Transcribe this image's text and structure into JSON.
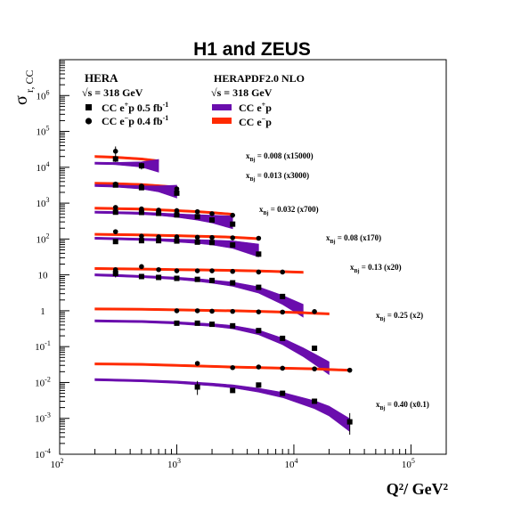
{
  "chart_data": {
    "type": "line",
    "title": "H1 and ZEUS",
    "ylabel_main": "σ",
    "ylabel_sub": "r, CC",
    "xlabel": "Q²/ GeV²",
    "xscale": "log",
    "yscale": "log",
    "xlim": [
      100,
      200000
    ],
    "ylim": [
      0.0001,
      10000000
    ],
    "x_ticks": [
      {
        "value": 100,
        "label": "10",
        "exp": "2"
      },
      {
        "value": 1000,
        "label": "10",
        "exp": "3"
      },
      {
        "value": 10000,
        "label": "10",
        "exp": "4"
      },
      {
        "value": 100000,
        "label": "10",
        "exp": "5"
      }
    ],
    "y_ticks": [
      {
        "value": 0.0001,
        "label": "10",
        "exp": "-4"
      },
      {
        "value": 0.001,
        "label": "10",
        "exp": "-3"
      },
      {
        "value": 0.01,
        "label": "10",
        "exp": "-2"
      },
      {
        "value": 0.1,
        "label": "10",
        "exp": "-1"
      },
      {
        "value": 1,
        "label": "1",
        "exp": ""
      },
      {
        "value": 10,
        "label": "10",
        "exp": ""
      },
      {
        "value": 100,
        "label": "10",
        "exp": "2"
      },
      {
        "value": 1000,
        "label": "10",
        "exp": "3"
      },
      {
        "value": 10000,
        "label": "10",
        "exp": "4"
      },
      {
        "value": 100000,
        "label": "10",
        "exp": "5"
      },
      {
        "value": 1000000,
        "label": "10",
        "exp": "6"
      }
    ],
    "legend": {
      "placement": "top-left",
      "data_title": "HERA",
      "data_energy": "√s = 318 GeV",
      "data_entries": [
        {
          "marker": "square",
          "label_pre": "CC e",
          "label_sup": "+",
          "label_post": "p 0.5 fb",
          "label_sup2": "-1"
        },
        {
          "marker": "circle",
          "label_pre": "CC e",
          "label_sup": "−",
          "label_post": "p 0.4 fb",
          "label_sup2": "-1"
        }
      ],
      "pdf_title": "HERAPDF2.0 NLO",
      "pdf_energy": "√s = 318 GeV",
      "pdf_entries": [
        {
          "color": "#6a0dad",
          "label_pre": "CC e",
          "label_sup": "+",
          "label_post": "p"
        },
        {
          "color": "#ff2a00",
          "label_pre": "CC e",
          "label_sup": "−",
          "label_post": "p"
        }
      ]
    },
    "colors": {
      "ep_band": "#6a0dad",
      "em_band": "#ff2a00",
      "points": "#000000"
    },
    "bins": [
      {
        "xbj_label": "x",
        "xbj_sub": "Bj",
        "xbj_value": "= 0.008",
        "scale": "(x15000)",
        "label_anchor_q2": 9500,
        "ep_curve": [
          [
            200,
            13000
          ],
          [
            300,
            12700
          ],
          [
            500,
            12000
          ],
          [
            700,
            11000
          ]
        ],
        "em_curve": [
          [
            200,
            20000
          ],
          [
            300,
            19000
          ],
          [
            500,
            17000
          ],
          [
            700,
            15000
          ]
        ],
        "ep_points": [
          [
            300,
            17000
          ],
          [
            500,
            11000
          ]
        ],
        "em_points": [
          [
            300,
            28000
          ]
        ],
        "ep_err": [
          [
            300,
            14000,
            21000
          ],
          [
            500,
            8700,
            13500
          ]
        ],
        "em_err": [
          [
            300,
            20000,
            38000
          ]
        ]
      },
      {
        "xbj_label": "x",
        "xbj_sub": "Bj",
        "xbj_value": "= 0.013",
        "scale": "(x3000)",
        "label_anchor_q2": 9500,
        "ep_curve": [
          [
            200,
            3100
          ],
          [
            300,
            3000
          ],
          [
            500,
            2750
          ],
          [
            700,
            2500
          ],
          [
            1000,
            2100
          ]
        ],
        "em_curve": [
          [
            200,
            3600
          ],
          [
            300,
            3500
          ],
          [
            500,
            3300
          ],
          [
            700,
            3050
          ],
          [
            1000,
            2800
          ]
        ],
        "ep_points": [
          [
            300,
            3200
          ],
          [
            500,
            2700
          ],
          [
            1000,
            1900
          ]
        ],
        "em_points": [
          [
            300,
            3400
          ],
          [
            500,
            3000
          ],
          [
            1000,
            2500
          ]
        ],
        "ep_err": [],
        "em_err": []
      },
      {
        "xbj_label": "x",
        "xbj_sub": "Bj",
        "xbj_value": "= 0.032",
        "scale": "(x700)",
        "label_anchor_q2": 2100,
        "ep_curve": [
          [
            200,
            560
          ],
          [
            300,
            545
          ],
          [
            500,
            520
          ],
          [
            700,
            490
          ],
          [
            1000,
            450
          ],
          [
            1500,
            400
          ],
          [
            2000,
            360
          ],
          [
            3000,
            290
          ]
        ],
        "em_curve": [
          [
            200,
            720
          ],
          [
            300,
            705
          ],
          [
            500,
            680
          ],
          [
            700,
            650
          ],
          [
            1000,
            620
          ],
          [
            1500,
            580
          ],
          [
            2000,
            545
          ],
          [
            3000,
            490
          ]
        ],
        "ep_points": [
          [
            300,
            560
          ],
          [
            500,
            550
          ],
          [
            700,
            520
          ],
          [
            1000,
            470
          ],
          [
            1500,
            420
          ],
          [
            2000,
            340
          ],
          [
            3000,
            260
          ]
        ],
        "em_points": [
          [
            300,
            760
          ],
          [
            500,
            690
          ],
          [
            700,
            640
          ],
          [
            1000,
            620
          ],
          [
            1500,
            580
          ],
          [
            2000,
            510
          ],
          [
            3000,
            460
          ]
        ],
        "ep_err": [],
        "em_err": []
      },
      {
        "xbj_label": "x",
        "xbj_sub": "Bj",
        "xbj_value": "= 0.08",
        "scale": "(x170)",
        "label_anchor_q2": 13000,
        "ep_curve": [
          [
            200,
            105
          ],
          [
            300,
            102
          ],
          [
            500,
            98
          ],
          [
            700,
            95
          ],
          [
            1000,
            90
          ],
          [
            1500,
            85
          ],
          [
            2000,
            80
          ],
          [
            3000,
            70
          ],
          [
            5000,
            48
          ]
        ],
        "em_curve": [
          [
            200,
            135
          ],
          [
            300,
            133
          ],
          [
            500,
            130
          ],
          [
            700,
            127
          ],
          [
            1000,
            124
          ],
          [
            1500,
            120
          ],
          [
            2000,
            117
          ],
          [
            3000,
            112
          ],
          [
            5000,
            102
          ]
        ],
        "ep_points": [
          [
            300,
            85
          ],
          [
            500,
            90
          ],
          [
            700,
            90
          ],
          [
            1000,
            88
          ],
          [
            1500,
            82
          ],
          [
            2000,
            80
          ],
          [
            3000,
            68
          ],
          [
            5000,
            38
          ]
        ],
        "em_points": [
          [
            300,
            160
          ],
          [
            500,
            120
          ],
          [
            700,
            115
          ],
          [
            1000,
            115
          ],
          [
            1500,
            112
          ],
          [
            2000,
            110
          ],
          [
            3000,
            108
          ],
          [
            5000,
            105
          ]
        ],
        "ep_err": [],
        "em_err": []
      },
      {
        "xbj_label": "x",
        "xbj_sub": "Bj",
        "xbj_value": "= 0.13",
        "scale": "(x20)",
        "label_anchor_q2": 20500,
        "ep_curve": [
          [
            200,
            10
          ],
          [
            300,
            9.6
          ],
          [
            500,
            9.0
          ],
          [
            700,
            8.5
          ],
          [
            1000,
            8.0
          ],
          [
            1500,
            7.2
          ],
          [
            2000,
            6.5
          ],
          [
            3000,
            5.5
          ],
          [
            5000,
            3.8
          ],
          [
            8000,
            2.0
          ],
          [
            12000,
            1.0
          ]
        ],
        "em_curve": [
          [
            200,
            15
          ],
          [
            300,
            14.8
          ],
          [
            500,
            14.5
          ],
          [
            700,
            14.3
          ],
          [
            1000,
            14.0
          ],
          [
            1500,
            13.8
          ],
          [
            2000,
            13.6
          ],
          [
            3000,
            13.3
          ],
          [
            5000,
            12.8
          ],
          [
            8000,
            12.3
          ],
          [
            12000,
            11.8
          ]
        ],
        "ep_points": [
          [
            300,
            11
          ],
          [
            500,
            9
          ],
          [
            700,
            8.5
          ],
          [
            1000,
            8
          ],
          [
            1500,
            7.5
          ],
          [
            2000,
            7
          ],
          [
            3000,
            6
          ],
          [
            5000,
            4.5
          ],
          [
            8000,
            2.5
          ]
        ],
        "em_points": [
          [
            300,
            14
          ],
          [
            500,
            17
          ],
          [
            700,
            14
          ],
          [
            1000,
            13
          ],
          [
            1500,
            13
          ],
          [
            2000,
            13
          ],
          [
            3000,
            12.5
          ],
          [
            5000,
            12
          ],
          [
            8000,
            12
          ]
        ],
        "ep_err": [
          [
            300,
            8.5,
            14
          ]
        ],
        "em_err": []
      },
      {
        "xbj_label": "x",
        "xbj_sub": "Bj",
        "xbj_value": "= 0.25",
        "scale": "(x2)",
        "label_anchor_q2": 40000,
        "ep_curve": [
          [
            200,
            0.52
          ],
          [
            500,
            0.5
          ],
          [
            1000,
            0.46
          ],
          [
            2000,
            0.4
          ],
          [
            3000,
            0.35
          ],
          [
            5000,
            0.25
          ],
          [
            8000,
            0.14
          ],
          [
            12000,
            0.07
          ],
          [
            15000,
            0.045
          ],
          [
            20000,
            0.025
          ]
        ],
        "em_curve": [
          [
            200,
            1.12
          ],
          [
            500,
            1.1
          ],
          [
            1000,
            1.06
          ],
          [
            2000,
            1.02
          ],
          [
            3000,
            1.0
          ],
          [
            5000,
            0.96
          ],
          [
            8000,
            0.92
          ],
          [
            12000,
            0.88
          ],
          [
            15000,
            0.85
          ],
          [
            20000,
            0.82
          ]
        ],
        "ep_points": [
          [
            1000,
            0.45
          ],
          [
            1500,
            0.45
          ],
          [
            2000,
            0.42
          ],
          [
            3000,
            0.38
          ],
          [
            5000,
            0.28
          ],
          [
            8000,
            0.17
          ],
          [
            15000,
            0.09
          ]
        ],
        "em_points": [
          [
            1000,
            1.0
          ],
          [
            1500,
            1.0
          ],
          [
            2000,
            0.97
          ],
          [
            3000,
            0.96
          ],
          [
            5000,
            0.93
          ],
          [
            8000,
            0.92
          ],
          [
            15000,
            0.95
          ]
        ],
        "ep_err": [],
        "em_err": []
      },
      {
        "xbj_label": "x",
        "xbj_sub": "Bj",
        "xbj_value": "= 0.40",
        "scale": "(x0.1)",
        "label_anchor_q2": 40000,
        "ep_curve": [
          [
            200,
            0.012
          ],
          [
            500,
            0.0112
          ],
          [
            1000,
            0.0102
          ],
          [
            2000,
            0.0088
          ],
          [
            3000,
            0.0078
          ],
          [
            5000,
            0.0061
          ],
          [
            8000,
            0.0045
          ],
          [
            15000,
            0.0024
          ],
          [
            20000,
            0.0016
          ],
          [
            30000,
            0.00065
          ]
        ],
        "em_curve": [
          [
            200,
            0.033
          ],
          [
            500,
            0.032
          ],
          [
            1000,
            0.03
          ],
          [
            2000,
            0.028
          ],
          [
            3000,
            0.027
          ],
          [
            5000,
            0.026
          ],
          [
            8000,
            0.025
          ],
          [
            15000,
            0.024
          ],
          [
            20000,
            0.023
          ],
          [
            30000,
            0.022
          ]
        ],
        "ep_points": [
          [
            1500,
            0.0075
          ],
          [
            3000,
            0.006
          ],
          [
            5000,
            0.0085
          ],
          [
            8000,
            0.005
          ],
          [
            15000,
            0.003
          ],
          [
            30000,
            0.0008
          ]
        ],
        "em_points": [
          [
            1500,
            0.034
          ],
          [
            3000,
            0.026
          ],
          [
            5000,
            0.027
          ],
          [
            8000,
            0.025
          ],
          [
            15000,
            0.024
          ],
          [
            30000,
            0.022
          ]
        ],
        "ep_err": [
          [
            1500,
            0.0045,
            0.011
          ],
          [
            30000,
            0.00035,
            0.0014
          ]
        ],
        "em_err": []
      }
    ]
  }
}
